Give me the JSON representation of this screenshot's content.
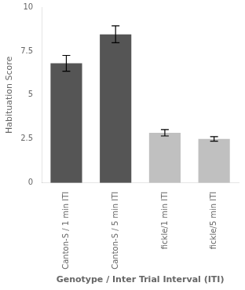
{
  "chart_data": {
    "type": "bar",
    "categories": [
      "Canton-S / 1 min ITI",
      "Canton-S / 5 min ITI",
      "fickle/1 min ITI",
      "fickle/5 min ITI"
    ],
    "values": [
      6.8,
      8.45,
      2.85,
      2.5
    ],
    "errors": [
      0.45,
      0.48,
      0.18,
      0.13
    ],
    "colors": [
      "#555555",
      "#555555",
      "#c0c0c0",
      "#c0c0c0"
    ],
    "ylabel": "Habituation Score",
    "xlabel": "Genotype / Inter Trial Interval (ITI)",
    "ylim": [
      0,
      10
    ],
    "yticks": [
      0,
      2.5,
      5,
      7.5,
      10
    ],
    "grid": false
  }
}
